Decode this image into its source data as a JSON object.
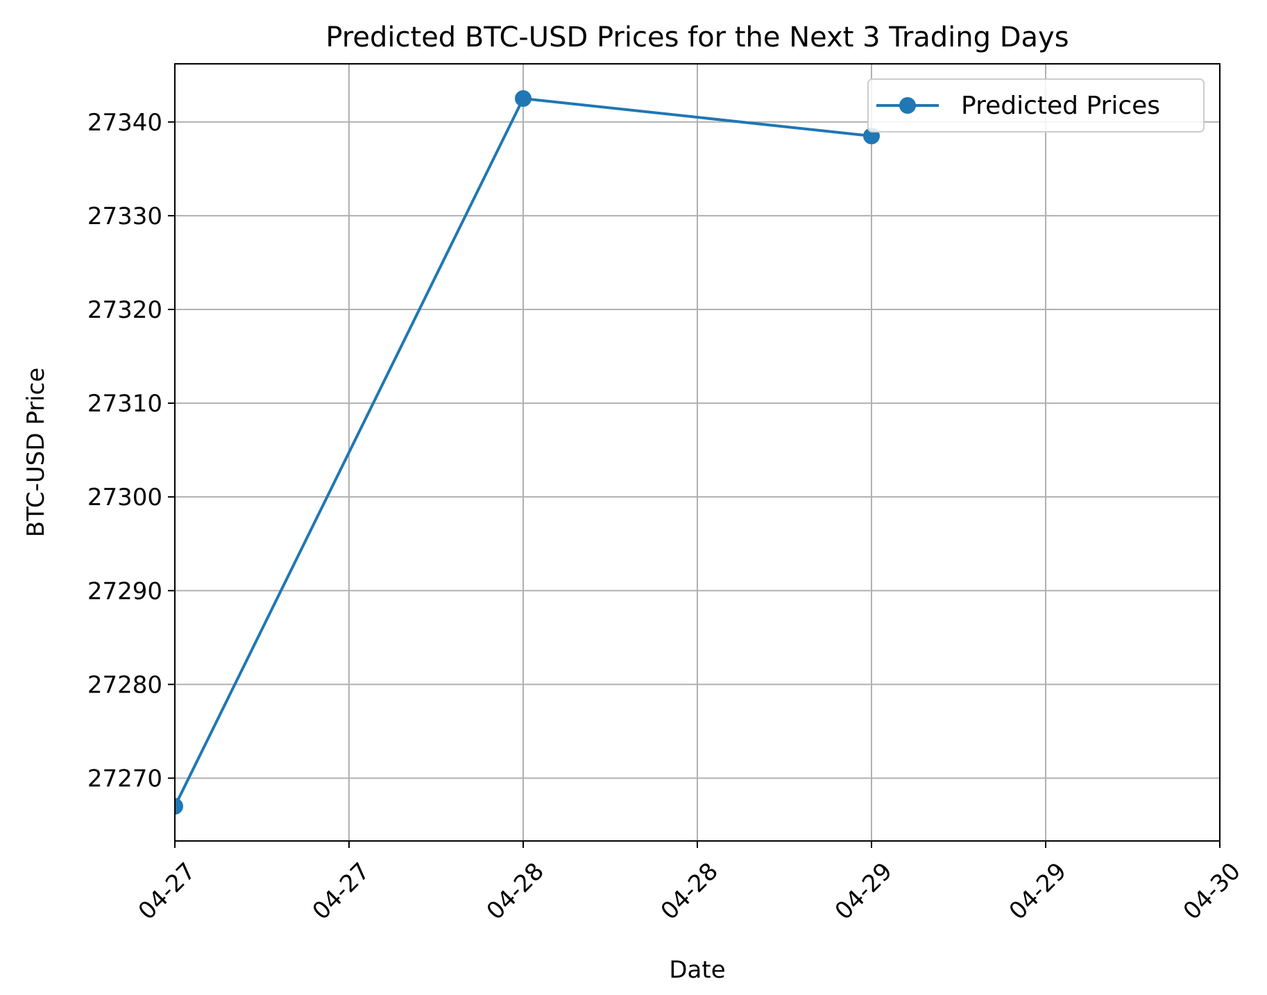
{
  "chart_data": {
    "type": "line",
    "title": "Predicted BTC-USD Prices for the Next 3 Trading Days",
    "xlabel": "Date",
    "ylabel": "BTC-USD Price",
    "x_ticks": [
      "04-27",
      "04-27",
      "04-28",
      "04-28",
      "04-29",
      "04-29",
      "04-30"
    ],
    "y_ticks": [
      27270,
      27280,
      27290,
      27300,
      27310,
      27320,
      27330,
      27340
    ],
    "xlim": [
      "04-27 00:00",
      "04-30 00:00"
    ],
    "ylim": [
      27263.3,
      27346.2
    ],
    "grid": true,
    "legend_position": "top-right",
    "series": [
      {
        "name": "Predicted Prices",
        "color": "#1f77b4",
        "marker": "circle",
        "points": [
          {
            "x": "04-27",
            "y": 27267.0
          },
          {
            "x": "04-28",
            "y": 27342.5
          },
          {
            "x": "04-29",
            "y": 27338.5
          }
        ]
      }
    ]
  }
}
